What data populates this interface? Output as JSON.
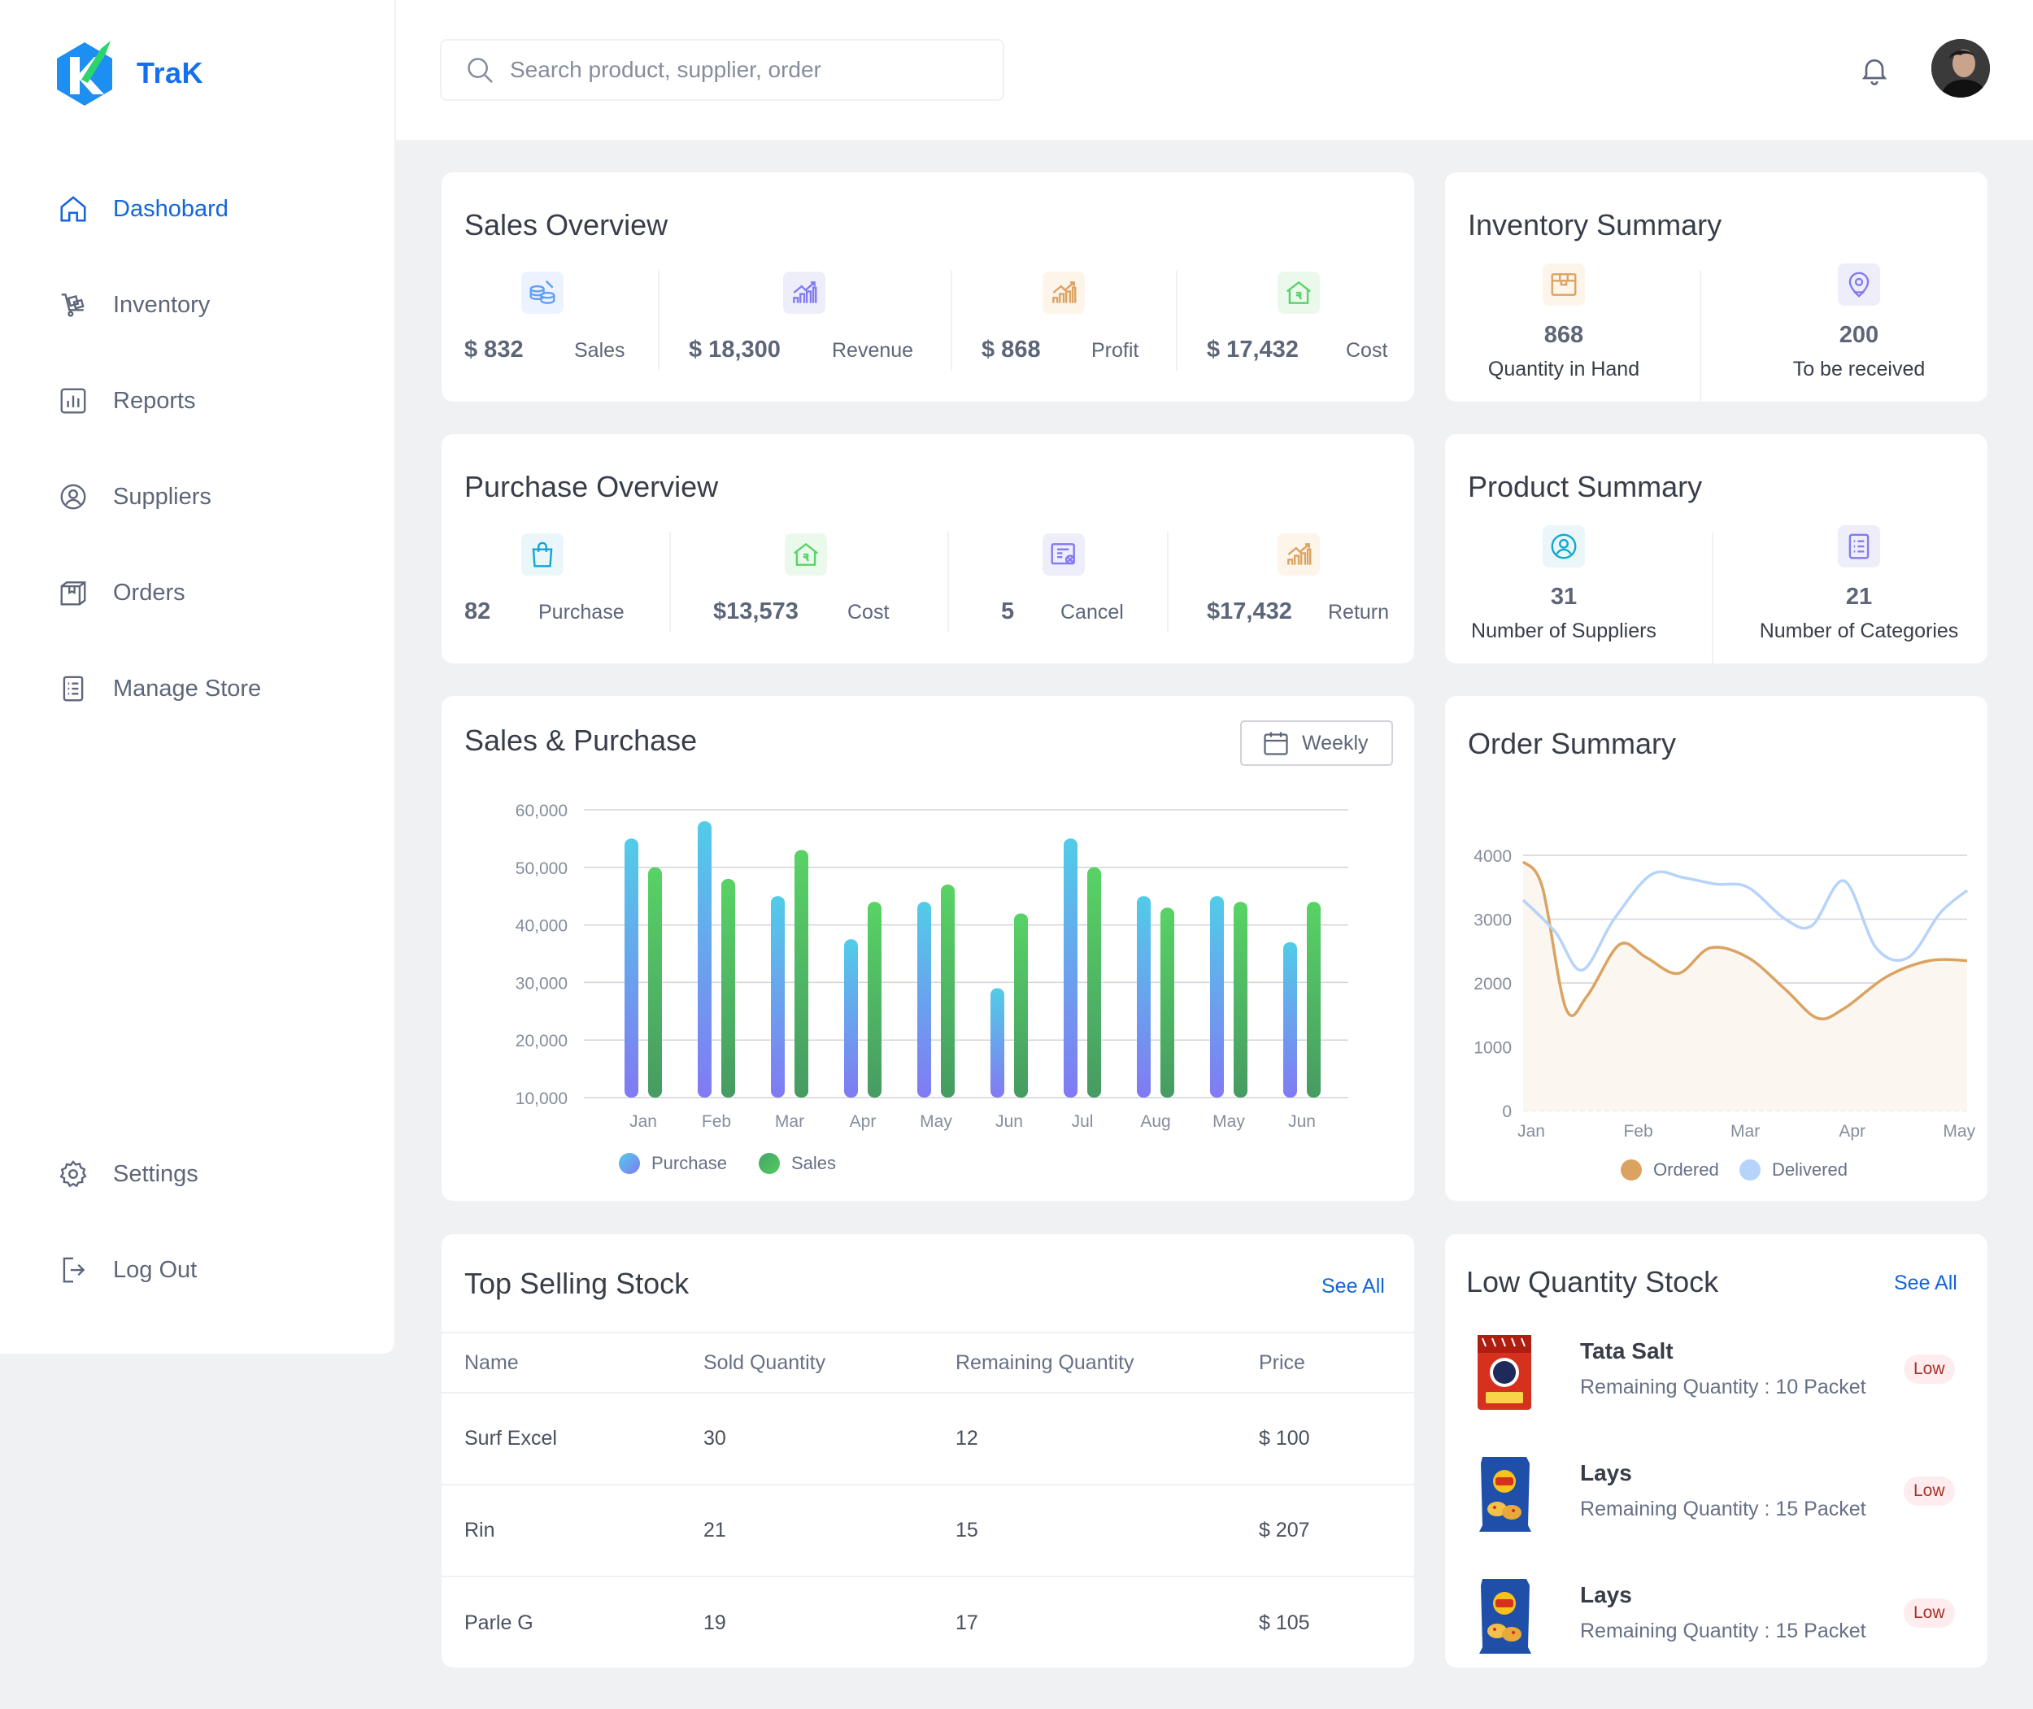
{
  "app": {
    "name": "TraK"
  },
  "nav": {
    "items": [
      {
        "label": "Dashobard",
        "icon": "home-icon"
      },
      {
        "label": "Inventory",
        "icon": "inventory-icon"
      },
      {
        "label": "Reports",
        "icon": "reports-icon"
      },
      {
        "label": "Suppliers",
        "icon": "suppliers-icon"
      },
      {
        "label": "Orders",
        "icon": "orders-icon"
      },
      {
        "label": "Manage Store",
        "icon": "manage-store-icon"
      }
    ],
    "bottom": [
      {
        "label": "Settings",
        "icon": "gear-icon"
      },
      {
        "label": "Log Out",
        "icon": "logout-icon"
      }
    ]
  },
  "search": {
    "placeholder": "Search product, supplier, order"
  },
  "sales_overview": {
    "title": "Sales Overview",
    "stats": [
      {
        "value": "$ 832",
        "label": "Sales",
        "icon": "sales-icon",
        "color": "#629ff4"
      },
      {
        "value": "$ 18,300",
        "label": "Revenue",
        "icon": "revenue-icon",
        "color": "#817af3"
      },
      {
        "value": "$ 868",
        "label": "Profit",
        "icon": "profit-icon",
        "color": "#dba362"
      },
      {
        "value": "$ 17,432",
        "label": "Cost",
        "icon": "cost-icon",
        "color": "#58d365"
      }
    ]
  },
  "inventory_summary": {
    "title": "Inventory Summary",
    "stats": [
      {
        "value": "868",
        "label": "Quantity in Hand",
        "icon": "box-icon",
        "color": "#dba362"
      },
      {
        "value": "200",
        "label": "To be received",
        "icon": "location-icon",
        "color": "#817af3"
      }
    ]
  },
  "purchase_overview": {
    "title": "Purchase Overview",
    "stats": [
      {
        "value": "82",
        "label": "Purchase",
        "icon": "bag-icon",
        "color": "#629ff4"
      },
      {
        "value": "$13,573",
        "label": "Cost",
        "icon": "cost-icon",
        "color": "#58d365"
      },
      {
        "value": "5",
        "label": "Cancel",
        "icon": "cancel-icon",
        "color": "#817af3"
      },
      {
        "value": "$17,432",
        "label": "Return",
        "icon": "return-icon",
        "color": "#dba362"
      }
    ]
  },
  "product_summary": {
    "title": "Product Summary",
    "stats": [
      {
        "value": "31",
        "label": "Number of Suppliers",
        "icon": "supplier-icon",
        "color": "#10a7cf"
      },
      {
        "value": "21",
        "label": "Number of Categories",
        "icon": "categories-icon",
        "color": "#817af3"
      }
    ]
  },
  "sales_purchase": {
    "title": "Sales & Purchase",
    "filter_label": "Weekly",
    "legend": [
      "Purchase",
      "Sales"
    ]
  },
  "order_summary": {
    "title": "Order Summary",
    "legend": [
      "Ordered",
      "Delivered"
    ]
  },
  "chart_data": [
    {
      "type": "bar",
      "title": "Sales & Purchase",
      "categories": [
        "Jan",
        "Feb",
        "Mar",
        "Apr",
        "May",
        "Jun",
        "Jul",
        "Aug",
        "May",
        "Jun"
      ],
      "series": [
        {
          "name": "Purchase",
          "values": [
            55000,
            58000,
            45000,
            37500,
            44000,
            29000,
            55000,
            45000,
            45000,
            37000
          ]
        },
        {
          "name": "Sales",
          "values": [
            50000,
            48000,
            53000,
            44000,
            47000,
            42000,
            50000,
            43000,
            44000,
            44000
          ]
        }
      ],
      "yticks": [
        "60,000",
        "50,000",
        "40,000",
        "30,000",
        "20,000",
        "10,000"
      ],
      "ylim": [
        10000,
        60000
      ],
      "grid": true,
      "legend": "bottom"
    },
    {
      "type": "line",
      "title": "Order Summary",
      "categories": [
        "Jan",
        "Feb",
        "Mar",
        "Apr",
        "May"
      ],
      "series": [
        {
          "name": "Ordered",
          "x": [
            0,
            0.18,
            0.4,
            0.6,
            0.9,
            1.15,
            1.45,
            1.75,
            2.1,
            2.45,
            2.75,
            3.0,
            3.4,
            3.8,
            4.15
          ],
          "values": [
            3900,
            3500,
            1600,
            1800,
            2600,
            2400,
            2150,
            2550,
            2400,
            1900,
            1450,
            1600,
            2100,
            2350,
            2350
          ]
        },
        {
          "name": "Delivered",
          "x": [
            0,
            0.3,
            0.55,
            0.85,
            1.2,
            1.5,
            1.8,
            2.1,
            2.45,
            2.7,
            3.0,
            3.3,
            3.6,
            3.9,
            4.15
          ],
          "values": [
            3300,
            2800,
            2200,
            3000,
            3700,
            3650,
            3550,
            3500,
            3000,
            2900,
            3600,
            2550,
            2400,
            3100,
            3450
          ]
        }
      ],
      "yticks": [
        "4000",
        "3000",
        "2000",
        "1000",
        "0"
      ],
      "ylim": [
        0,
        4000
      ],
      "grid": true,
      "legend": "bottom"
    }
  ],
  "top_selling": {
    "title": "Top Selling Stock",
    "see_all": "See All",
    "columns": [
      "Name",
      "Sold Quantity",
      "Remaining Quantity",
      "Price"
    ],
    "rows": [
      [
        "Surf Excel",
        "30",
        "12",
        "$ 100"
      ],
      [
        "Rin",
        "21",
        "15",
        "$ 207"
      ],
      [
        "Parle G",
        "19",
        "17",
        "$ 105"
      ]
    ]
  },
  "low_stock": {
    "title": "Low Quantity  Stock",
    "see_all": "See All",
    "items": [
      {
        "name": "Tata Salt",
        "qty": "Remaining Quantity : 10 Packet",
        "badge": "Low",
        "image": "tata-salt-image"
      },
      {
        "name": "Lays",
        "qty": "Remaining Quantity : 15 Packet",
        "badge": "Low",
        "image": "lays-image"
      },
      {
        "name": "Lays",
        "qty": "Remaining Quantity : 15 Packet",
        "badge": "Low",
        "image": "lays-image"
      }
    ]
  }
}
